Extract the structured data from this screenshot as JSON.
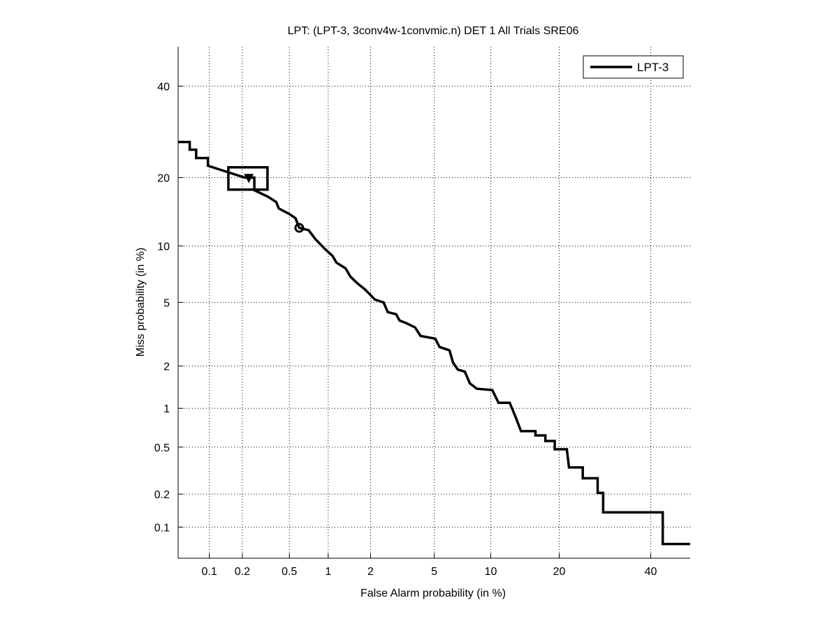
{
  "chart_data": {
    "type": "line",
    "title": "LPT: (LPT-3, 3conv4w-1convmic.n) DET 1 All Trials SRE06",
    "xlabel": "False Alarm probability (in %)",
    "ylabel": "Miss probability (in %)",
    "x_scale": "probit (normal deviate)",
    "y_scale": "probit (normal deviate)",
    "xlim": [
      0.05,
      50
    ],
    "ylim": [
      0.05,
      50
    ],
    "x_ticks": [
      0.1,
      0.2,
      0.5,
      1,
      2,
      5,
      10,
      20,
      40
    ],
    "x_tick_labels": [
      "0.1",
      "0.2",
      "0.5",
      "1",
      "2",
      "5",
      "10",
      "20",
      "40"
    ],
    "y_ticks": [
      0.1,
      0.2,
      0.5,
      1,
      2,
      5,
      10,
      20,
      40
    ],
    "y_tick_labels": [
      "0.1",
      "0.2",
      "0.5",
      "1",
      "2",
      "5",
      "10",
      "20",
      "40"
    ],
    "grid": true,
    "legend_position": "top-right",
    "series": [
      {
        "name": "LPT-3",
        "color": "#000000",
        "points": [
          [
            0.05,
            27.0
          ],
          [
            0.065,
            27.0
          ],
          [
            0.065,
            25.4
          ],
          [
            0.075,
            25.4
          ],
          [
            0.075,
            23.7
          ],
          [
            0.097,
            23.7
          ],
          [
            0.097,
            22.2
          ],
          [
            0.21,
            20.0
          ],
          [
            0.255,
            20.0
          ],
          [
            0.255,
            17.8
          ],
          [
            0.335,
            16.7
          ],
          [
            0.39,
            15.9
          ],
          [
            0.41,
            14.9
          ],
          [
            0.5,
            14.1
          ],
          [
            0.56,
            13.5
          ],
          [
            0.6,
            12.2
          ],
          [
            0.71,
            11.9
          ],
          [
            0.8,
            10.8
          ],
          [
            0.94,
            9.7
          ],
          [
            1.08,
            8.9
          ],
          [
            1.15,
            8.24
          ],
          [
            1.34,
            7.7
          ],
          [
            1.45,
            6.96
          ],
          [
            1.63,
            6.38
          ],
          [
            1.82,
            5.95
          ],
          [
            2.14,
            5.19
          ],
          [
            2.44,
            5.0
          ],
          [
            2.6,
            4.39
          ],
          [
            2.94,
            4.26
          ],
          [
            3.09,
            3.91
          ],
          [
            3.42,
            3.76
          ],
          [
            3.85,
            3.55
          ],
          [
            4.16,
            3.14
          ],
          [
            5.07,
            3.02
          ],
          [
            5.36,
            2.67
          ],
          [
            6.1,
            2.54
          ],
          [
            6.37,
            2.11
          ],
          [
            6.77,
            1.89
          ],
          [
            7.38,
            1.83
          ],
          [
            7.83,
            1.52
          ],
          [
            8.51,
            1.39
          ],
          [
            10.17,
            1.36
          ],
          [
            10.9,
            1.1
          ],
          [
            12.3,
            1.1
          ],
          [
            13.1,
            0.86
          ],
          [
            13.85,
            0.67
          ],
          [
            16.0,
            0.67
          ],
          [
            16.0,
            0.62
          ],
          [
            17.6,
            0.62
          ],
          [
            17.6,
            0.56
          ],
          [
            19.2,
            0.56
          ],
          [
            19.2,
            0.48
          ],
          [
            21.4,
            0.48
          ],
          [
            21.8,
            0.34
          ],
          [
            24.5,
            0.34
          ],
          [
            24.5,
            0.275
          ],
          [
            27.6,
            0.275
          ],
          [
            27.6,
            0.205
          ],
          [
            28.8,
            0.205
          ],
          [
            28.8,
            0.137
          ],
          [
            43.0,
            0.137
          ],
          [
            43.0,
            0.069
          ],
          [
            50,
            0.069
          ]
        ]
      }
    ],
    "markers": {
      "min_dcf_triangle": [
        0.228,
        19.9
      ],
      "actual_dcf_circle": [
        0.6,
        12.2
      ],
      "confidence_box": {
        "fa": [
          0.15,
          0.33
        ],
        "miss": [
          17.9,
          21.9
        ]
      }
    }
  }
}
